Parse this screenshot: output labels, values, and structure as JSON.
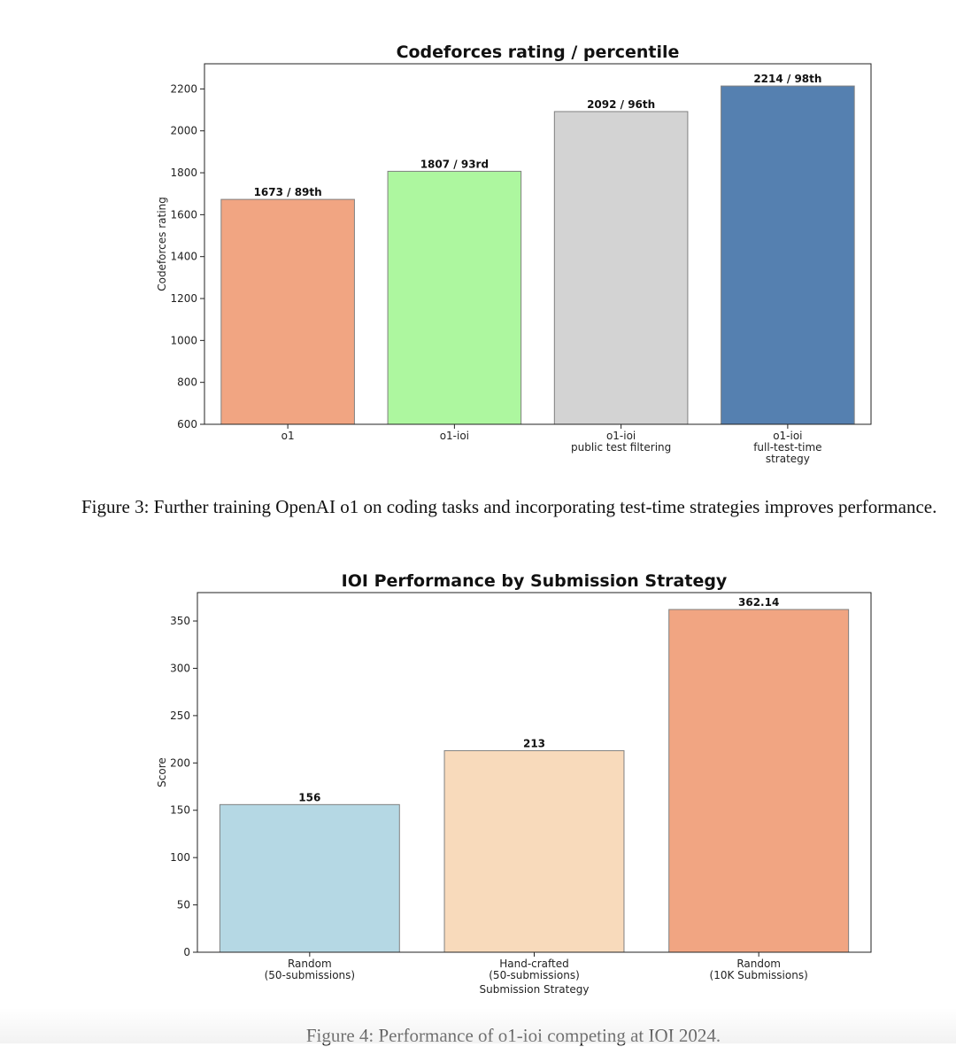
{
  "chart_data": [
    {
      "type": "bar",
      "title": "Codeforces rating / percentile",
      "xlabel": "",
      "ylabel": "Codeforces rating",
      "ylim": [
        600,
        2320
      ],
      "yticks": [
        600,
        800,
        1000,
        1200,
        1400,
        1600,
        1800,
        2000,
        2200
      ],
      "categories": [
        [
          "o1"
        ],
        [
          "o1-ioi"
        ],
        [
          "o1-ioi",
          "public test filtering"
        ],
        [
          "o1-ioi",
          "full-test-time",
          "strategy"
        ]
      ],
      "values": [
        1673,
        1807,
        2092,
        2214
      ],
      "labels": [
        "1673 / 89th",
        "1807 / 93rd",
        "2092 / 96th",
        "2214 / 98th"
      ],
      "colors": [
        "#f1a582",
        "#adf79f",
        "#d3d3d3",
        "#5580b0"
      ],
      "grid": false
    },
    {
      "type": "bar",
      "title": "IOI Performance by Submission Strategy",
      "xlabel": "Submission Strategy",
      "ylabel": "Score",
      "ylim": [
        0,
        380
      ],
      "yticks": [
        0,
        50,
        100,
        150,
        200,
        250,
        300,
        350
      ],
      "categories": [
        [
          "Random",
          "(50-submissions)"
        ],
        [
          "Hand-crafted",
          "(50-submissions)"
        ],
        [
          "Random",
          "(10K Submissions)"
        ]
      ],
      "values": [
        156,
        213,
        362.14
      ],
      "labels": [
        "156",
        "213",
        "362.14"
      ],
      "colors": [
        "#b5d8e4",
        "#f8dabb",
        "#f1a582"
      ],
      "grid": false
    }
  ],
  "captions": {
    "figure3": "Figure 3: Further training OpenAI o1 on coding tasks and incorporating test-time strategies improves performance.",
    "figure4": "Figure 4: Performance of o1-ioi competing at IOI 2024."
  }
}
